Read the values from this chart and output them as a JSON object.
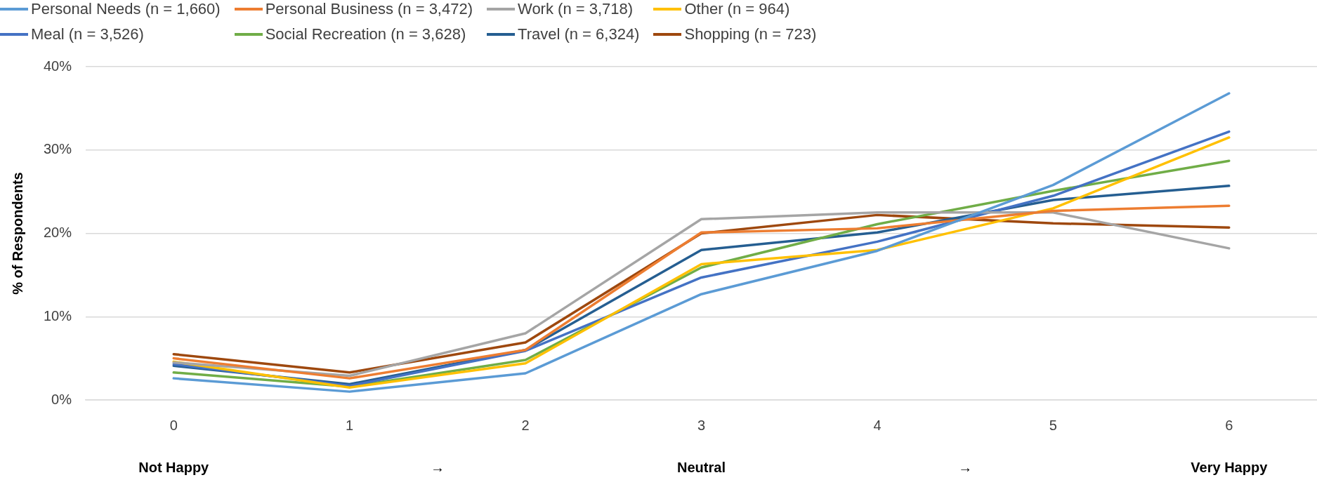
{
  "chart_data": {
    "type": "line",
    "ylabel": "% of Respondents",
    "categories": [
      "0",
      "1",
      "2",
      "3",
      "4",
      "5",
      "6"
    ],
    "series": [
      {
        "name": "Personal Needs (n = 1,660)",
        "color": "#5b9bd5",
        "values": [
          2.6,
          1.0,
          3.2,
          12.7,
          17.9,
          25.8,
          36.8
        ]
      },
      {
        "name": "Personal Business (n = 3,472)",
        "color": "#ed7d31",
        "values": [
          5.0,
          2.6,
          6.0,
          20.1,
          20.6,
          22.7,
          23.3
        ]
      },
      {
        "name": "Work (n = 3,718)",
        "color": "#a5a5a5",
        "values": [
          4.5,
          2.9,
          8.0,
          21.7,
          22.5,
          22.5,
          18.2
        ]
      },
      {
        "name": "Other (n = 964)",
        "color": "#ffc000",
        "values": [
          4.6,
          1.5,
          4.4,
          16.3,
          18.0,
          23.0,
          31.5
        ]
      },
      {
        "name": "Meal (n = 3,526)",
        "color": "#4472c4",
        "values": [
          4.3,
          1.7,
          5.9,
          14.7,
          19.0,
          24.5,
          32.2
        ]
      },
      {
        "name": "Social Recreation (n = 3,628)",
        "color": "#70ad47",
        "values": [
          3.3,
          1.6,
          4.8,
          15.9,
          21.1,
          25.1,
          28.7
        ]
      },
      {
        "name": "Travel (n = 6,324)",
        "color": "#255e91",
        "values": [
          4.1,
          1.9,
          6.0,
          18.0,
          20.1,
          24.0,
          25.7
        ]
      },
      {
        "name": "Shopping (n = 723)",
        "color": "#9e480e",
        "values": [
          5.5,
          3.3,
          6.9,
          20.0,
          22.2,
          21.2,
          20.7
        ]
      }
    ],
    "ylim": [
      0,
      40
    ],
    "yticks": [
      {
        "value": 0,
        "label": "0%"
      },
      {
        "value": 10,
        "label": "10%"
      },
      {
        "value": 20,
        "label": "20%"
      },
      {
        "value": 30,
        "label": "30%"
      },
      {
        "value": 40,
        "label": "40%"
      }
    ],
    "grid": "y",
    "legend": "top",
    "marker": "none",
    "line_style": "solid",
    "annotations": [
      "Not Happy",
      "→",
      "Neutral",
      "→",
      "Very Happy"
    ]
  }
}
